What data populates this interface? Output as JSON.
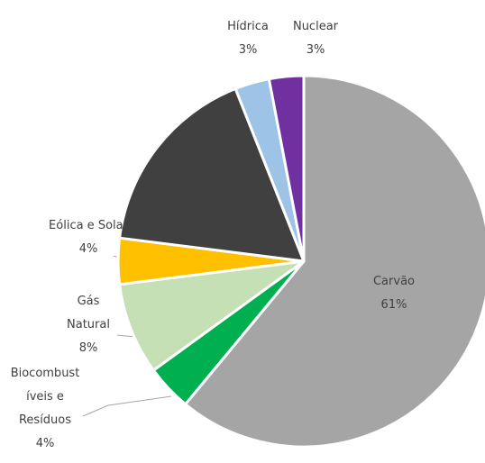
{
  "chart_data": {
    "type": "pie",
    "categories": [
      "Carvão",
      "Biocombustíveis e Resíduos",
      "Gás Natural",
      "Eólica e Solar",
      null,
      "Hídrica",
      "Nuclear"
    ],
    "values": [
      61,
      4,
      8,
      4,
      17,
      3,
      3
    ],
    "value_labels": [
      "61%",
      "4%",
      "8%",
      "4%",
      null,
      "3%",
      "3%"
    ],
    "colors": [
      "#a5a5a5",
      "#00b050",
      "#c5e0b4",
      "#ffc000",
      "#404040",
      "#9dc3e6",
      "#7030a0"
    ]
  }
}
